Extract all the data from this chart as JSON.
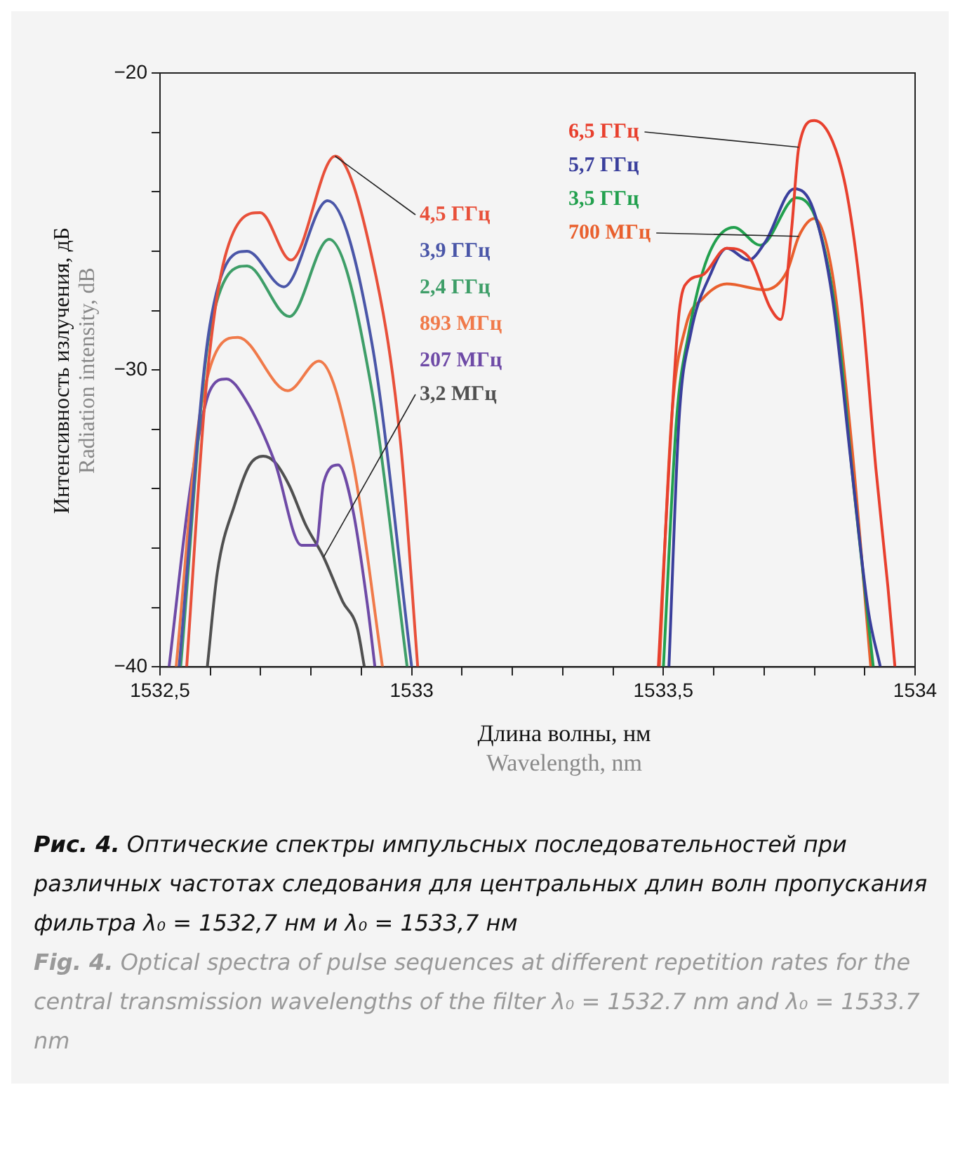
{
  "chart_data": {
    "type": "line",
    "xlabel": "Длина волны, нм\nWavelength, nm",
    "ylabel": "Интенсивность излучения, дБ\nRadiation intensity, dB",
    "xlim": [
      1532.5,
      1534
    ],
    "ylim": [
      -40,
      -20
    ],
    "xticks": [
      {
        "value": 1532.5,
        "label": "1532,5"
      },
      {
        "value": 1532.6,
        "label": null
      },
      {
        "value": 1532.7,
        "label": null
      },
      {
        "value": 1532.8,
        "label": null
      },
      {
        "value": 1532.9,
        "label": null
      },
      {
        "value": 1533,
        "label": "1533"
      },
      {
        "value": 1533.1,
        "label": null
      },
      {
        "value": 1533.2,
        "label": null
      },
      {
        "value": 1533.3,
        "label": null
      },
      {
        "value": 1533.4,
        "label": null
      },
      {
        "value": 1533.5,
        "label": "1533,5"
      },
      {
        "value": 1533.6,
        "label": null
      },
      {
        "value": 1533.7,
        "label": null
      },
      {
        "value": 1533.8,
        "label": null
      },
      {
        "value": 1533.9,
        "label": null
      },
      {
        "value": 1534,
        "label": "1534"
      }
    ],
    "yticks": [
      {
        "value": -40,
        "label": "−40"
      },
      {
        "value": -38,
        "label": null
      },
      {
        "value": -36,
        "label": null
      },
      {
        "value": -34,
        "label": null
      },
      {
        "value": -32,
        "label": null
      },
      {
        "value": -30,
        "label": "−30"
      },
      {
        "value": -28,
        "label": null
      },
      {
        "value": -26,
        "label": null
      },
      {
        "value": -24,
        "label": null
      },
      {
        "value": -22,
        "label": null
      },
      {
        "value": -20,
        "label": "−20"
      }
    ],
    "grid": false,
    "marker": "none",
    "line_style": "solid",
    "series": [
      {
        "name": "4,5 ГГц",
        "color": "#e8503a",
        "x": [
          1532.553,
          1532.591,
          1532.629,
          1532.699,
          1532.76,
          1532.848,
          1532.921,
          1532.977,
          1533.012
        ],
        "values": [
          -40,
          -30.7,
          -26.2,
          -24.7,
          -26.3,
          -22.8,
          -26.2,
          -32.3,
          -40
        ]
      },
      {
        "name": "3,9 ГГц",
        "color": "#4a56a8",
        "x": [
          1532.538,
          1532.599,
          1532.673,
          1532.746,
          1532.833,
          1532.921,
          1533.0
        ],
        "values": [
          -40,
          -28.5,
          -26.0,
          -27.2,
          -24.3,
          -29.1,
          -40
        ]
      },
      {
        "name": "2,4 ГГц",
        "color": "#3e9e68",
        "x": [
          1532.541,
          1532.599,
          1532.673,
          1532.757,
          1532.836,
          1532.921,
          1532.991
        ],
        "values": [
          -40,
          -28.7,
          -26.5,
          -28.2,
          -25.6,
          -30.7,
          -40
        ]
      },
      {
        "name": "893 МГц",
        "color": "#f07a4a",
        "x": [
          1532.532,
          1532.582,
          1532.655,
          1532.754,
          1532.816,
          1532.883,
          1532.942
        ],
        "values": [
          -40,
          -31.2,
          -28.9,
          -30.7,
          -29.7,
          -33.1,
          -40
        ]
      },
      {
        "name": "207 МГц",
        "color": "#6e4aa6",
        "x": [
          1532.518,
          1532.561,
          1532.599,
          1532.632,
          1532.67,
          1532.728,
          1532.781,
          1532.81,
          1532.825,
          1532.854,
          1532.883,
          1532.912,
          1532.927
        ],
        "values": [
          -40,
          -33.9,
          -30.7,
          -30.3,
          -31.0,
          -33.1,
          -35.9,
          -35.9,
          -33.8,
          -33.2,
          -34.7,
          -37.9,
          -40
        ]
      },
      {
        "name": "3,2 МГц",
        "color": "#505050",
        "x": [
          1532.594,
          1532.614,
          1532.649,
          1532.678,
          1532.705,
          1532.728,
          1532.757,
          1532.789,
          1532.825,
          1532.863,
          1532.892,
          1532.906
        ],
        "values": [
          -40,
          -36.8,
          -34.5,
          -33.2,
          -32.9,
          -33.1,
          -33.9,
          -35.2,
          -36.3,
          -37.8,
          -38.7,
          -40
        ]
      },
      {
        "name": "6,5 ГГц",
        "color": "#e8402e",
        "x": [
          1533.49,
          1533.511,
          1533.531,
          1533.55,
          1533.578,
          1533.626,
          1533.674,
          1533.712,
          1533.733,
          1533.755,
          1533.769,
          1533.8,
          1533.836,
          1533.865,
          1533.893,
          1533.922,
          1533.946,
          1533.96
        ],
        "values": [
          -40,
          -33.3,
          -28.1,
          -27.0,
          -26.8,
          -25.9,
          -26.3,
          -27.9,
          -28.3,
          -25.2,
          -22.5,
          -21.6,
          -22.3,
          -24.1,
          -27.6,
          -33.3,
          -37.3,
          -40
        ]
      },
      {
        "name": "5,7 ГГц",
        "color": "#3a3f9c",
        "x": [
          1533.511,
          1533.531,
          1533.554,
          1533.593,
          1533.626,
          1533.669,
          1533.702,
          1533.76,
          1533.798,
          1533.836,
          1533.874,
          1533.907,
          1533.931
        ],
        "values": [
          -40,
          -31.7,
          -28.8,
          -26.8,
          -25.9,
          -26.3,
          -25.7,
          -23.9,
          -24.6,
          -27.6,
          -33.3,
          -38.1,
          -40
        ]
      },
      {
        "name": "3,5 ГГц",
        "color": "#22a04e",
        "x": [
          1533.5,
          1533.526,
          1533.55,
          1533.588,
          1533.64,
          1533.693,
          1533.764,
          1533.807,
          1533.845,
          1533.879,
          1533.917
        ],
        "values": [
          -40,
          -31.7,
          -28.8,
          -26.2,
          -25.2,
          -25.8,
          -24.2,
          -25.1,
          -28.4,
          -34.1,
          -40
        ]
      },
      {
        "name": "700 МГц",
        "color": "#e9602e",
        "x": [
          1533.492,
          1533.516,
          1533.545,
          1533.578,
          1533.626,
          1533.702,
          1533.745,
          1533.769,
          1533.8,
          1533.836,
          1533.874,
          1533.912
        ],
        "values": [
          -40,
          -31.7,
          -28.5,
          -27.6,
          -27.1,
          -27.3,
          -26.7,
          -25.5,
          -24.9,
          -26.8,
          -32.5,
          -40
        ]
      }
    ],
    "annotations": [
      "Рис. 4. Оптические спектры импульсных последовательностей при различных частотах следования для центральных длин волн пропускания фильтра λ₀ = 1532,7 нм и λ₀ = 1533,7 нм",
      "Fig. 4. Optical spectra of pulse sequences at different repetition rates for the central transmission wavelengths of the filter λ₀ = 1532.7 nm and λ₀ = 1533.7 nm"
    ]
  }
}
